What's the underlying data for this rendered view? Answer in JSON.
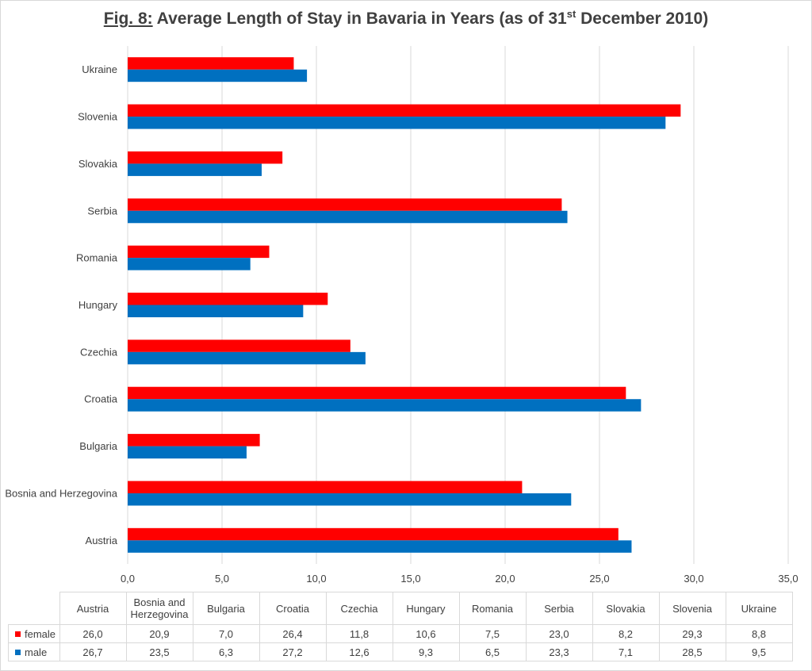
{
  "title": {
    "prefix": "Fig. 8:",
    "main": " Average Length of Stay in Bavaria in Years (as of 31",
    "sup": "st",
    "suffix": " December 2010)"
  },
  "colors": {
    "female": "#ff0000",
    "male": "#0070c0",
    "grid": "#d9d9d9",
    "text": "#404040"
  },
  "chart_data": {
    "type": "bar",
    "orientation": "horizontal",
    "categories": [
      "Austria",
      "Bosnia and Herzegovina",
      "Bulgaria",
      "Croatia",
      "Czechia",
      "Hungary",
      "Romania",
      "Serbia",
      "Slovakia",
      "Slovenia",
      "Ukraine"
    ],
    "series": [
      {
        "name": "female",
        "values": [
          26.0,
          20.9,
          7.0,
          26.4,
          11.8,
          10.6,
          7.5,
          23.0,
          8.2,
          29.3,
          8.8
        ],
        "color": "#ff0000"
      },
      {
        "name": "male",
        "values": [
          26.7,
          23.5,
          6.3,
          27.2,
          12.6,
          9.3,
          6.5,
          23.3,
          7.1,
          28.5,
          9.5
        ],
        "color": "#0070c0"
      }
    ],
    "xlim": [
      0,
      35
    ],
    "xticks": [
      "0,0",
      "5,0",
      "10,0",
      "15,0",
      "20,0",
      "25,0",
      "30,0",
      "35,0"
    ],
    "grid": true,
    "data_table": {
      "header": [
        "Austria",
        "Bosnia and Herzegovina",
        "Bulgaria",
        "Croatia",
        "Czechia",
        "Hungary",
        "Romania",
        "Serbia",
        "Slovakia",
        "Slovenia",
        "Ukraine"
      ],
      "rows": [
        {
          "label": "female",
          "values": [
            "26,0",
            "20,9",
            "7,0",
            "26,4",
            "11,8",
            "10,6",
            "7,5",
            "23,0",
            "8,2",
            "29,3",
            "8,8"
          ]
        },
        {
          "label": "male",
          "values": [
            "26,7",
            "23,5",
            "6,3",
            "27,2",
            "12,6",
            "9,3",
            "6,5",
            "23,3",
            "7,1",
            "28,5",
            "9,5"
          ]
        }
      ]
    }
  }
}
